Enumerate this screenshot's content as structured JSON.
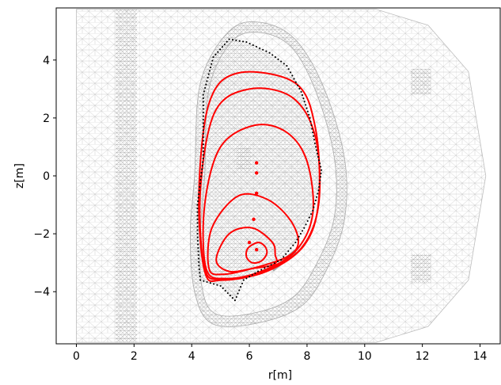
{
  "chart_data": {
    "type": "line",
    "title": "",
    "xlabel": "r[m]",
    "ylabel": "z[m]",
    "xlim": [
      -0.7,
      14.7
    ],
    "ylim": [
      -5.8,
      5.8
    ],
    "xticks": [
      "0",
      "2",
      "4",
      "6",
      "8",
      "10",
      "12",
      "14"
    ],
    "yticks": [
      "4",
      "2",
      "0",
      "−2",
      "−4"
    ],
    "grid": false,
    "legend": "none",
    "colors": {
      "flux_surface": "#ff0000",
      "mesh": "#bcbcbc",
      "wall_points": "#000000"
    },
    "background": {
      "mesh_outer_boundary": [
        [
          0,
          5.75
        ],
        [
          10.4,
          5.75
        ],
        [
          12.2,
          5.2
        ],
        [
          13.6,
          3.6
        ],
        [
          14.2,
          0
        ],
        [
          13.6,
          -3.6
        ],
        [
          12.2,
          -5.2
        ],
        [
          10.4,
          -5.75
        ],
        [
          0,
          -5.75
        ]
      ],
      "dense_mesh_regions": [
        {
          "r": [
            1.35,
            2.1
          ],
          "z": [
            -5.75,
            5.75
          ]
        },
        {
          "r": [
            11.6,
            12.3
          ],
          "z": [
            2.8,
            3.7
          ]
        },
        {
          "r": [
            11.6,
            12.3
          ],
          "z": [
            -3.7,
            -2.7
          ]
        },
        {
          "r": [
            5.55,
            6.05
          ],
          "z": [
            0.2,
            1.0
          ]
        }
      ],
      "vacuum_vessel_outer": [
        [
          4.1,
          0
        ],
        [
          4.3,
          3.2
        ],
        [
          5.3,
          5.0
        ],
        [
          6.4,
          5.3
        ],
        [
          7.6,
          4.7
        ],
        [
          8.6,
          3.0
        ],
        [
          9.3,
          0.6
        ],
        [
          9.3,
          -1.5
        ],
        [
          8.7,
          -3.2
        ],
        [
          7.8,
          -4.5
        ],
        [
          6.2,
          -5.1
        ],
        [
          4.7,
          -5.1
        ],
        [
          4.1,
          -4.0
        ],
        [
          3.95,
          -2.0
        ],
        [
          4.1,
          0
        ]
      ],
      "vacuum_vessel_inner": [
        [
          4.45,
          0
        ],
        [
          4.6,
          3.0
        ],
        [
          5.4,
          4.65
        ],
        [
          6.4,
          4.95
        ],
        [
          7.5,
          4.4
        ],
        [
          8.35,
          2.8
        ],
        [
          8.95,
          0.6
        ],
        [
          8.95,
          -1.4
        ],
        [
          8.35,
          -3.0
        ],
        [
          7.5,
          -4.2
        ],
        [
          6.1,
          -4.75
        ],
        [
          4.8,
          -4.75
        ],
        [
          4.35,
          -3.8
        ],
        [
          4.3,
          -2.0
        ],
        [
          4.45,
          0
        ]
      ]
    },
    "wall_points": [
      [
        4.4,
        0.6
      ],
      [
        4.4,
        2.8
      ],
      [
        4.75,
        4.1
      ],
      [
        5.3,
        4.72
      ],
      [
        5.9,
        4.62
      ],
      [
        6.7,
        4.25
      ],
      [
        7.3,
        3.8
      ],
      [
        7.8,
        2.9
      ],
      [
        8.1,
        2.0
      ],
      [
        8.3,
        1.0
      ],
      [
        8.5,
        0.2
      ],
      [
        8.4,
        -0.5
      ],
      [
        8.2,
        -1.2
      ],
      [
        7.9,
        -1.8
      ],
      [
        7.6,
        -2.3
      ],
      [
        7.1,
        -2.9
      ],
      [
        6.3,
        -3.3
      ],
      [
        5.8,
        -3.6
      ],
      [
        5.5,
        -4.3
      ],
      [
        5.0,
        -3.8
      ],
      [
        4.3,
        -3.6
      ],
      [
        4.25,
        -3.1
      ],
      [
        4.2,
        -2.0
      ],
      [
        4.2,
        -1.0
      ]
    ],
    "divertor_target": [
      [
        6.8,
        -3.25
      ],
      [
        7.6,
        -2.6
      ]
    ],
    "series": [
      {
        "r": [
          6.9,
          6.8,
          6.1,
          5.3,
          4.85,
          5.3,
          6.1,
          6.75,
          6.95,
          6.9
        ],
        "z": [
          -2.75,
          -2.3,
          -1.8,
          -2.0,
          -2.9,
          -3.3,
          -3.2,
          -3.1,
          -2.95,
          -2.75
        ]
      },
      {
        "r": [
          6.3,
          6.55,
          6.6,
          6.4,
          6.1,
          5.9,
          5.95,
          6.3
        ],
        "z": [
          -2.3,
          -2.45,
          -2.7,
          -2.95,
          -3.0,
          -2.8,
          -2.5,
          -2.3
        ]
      },
      {
        "r": [
          7.7,
          7.4,
          6.6,
          5.6,
          4.7,
          4.6,
          5.1,
          6.1,
          7.3,
          7.7
        ],
        "z": [
          -2.3,
          -1.5,
          -0.8,
          -0.7,
          -1.8,
          -3.2,
          -3.4,
          -3.2,
          -2.8,
          -2.3
        ]
      },
      {
        "r": [
          8.2,
          8.0,
          7.3,
          6.2,
          5.0,
          4.45,
          4.5,
          5.2,
          6.4,
          7.6,
          8.2
        ],
        "z": [
          -1.3,
          0.5,
          1.5,
          1.75,
          1.0,
          -1.0,
          -3.2,
          -3.55,
          -3.3,
          -2.6,
          -1.3
        ]
      },
      {
        "r": [
          8.4,
          8.3,
          7.5,
          6.0,
          4.8,
          4.3,
          4.45,
          5.1,
          6.5,
          7.8,
          8.4
        ],
        "z": [
          -1.0,
          1.3,
          2.7,
          3.0,
          2.2,
          -0.5,
          -3.2,
          -3.55,
          -3.3,
          -2.5,
          -1.0
        ]
      },
      {
        "r": [
          8.4,
          8.3,
          7.6,
          5.6,
          4.6,
          4.25,
          4.45,
          5.05,
          6.6,
          7.9,
          8.4
        ],
        "z": [
          -0.9,
          1.6,
          3.2,
          3.55,
          2.5,
          -0.6,
          -3.3,
          -3.6,
          -3.3,
          -2.4,
          -0.9
        ]
      }
    ],
    "axis_points": [
      [
        6.25,
        -2.55
      ],
      [
        6.0,
        -2.3
      ],
      [
        6.15,
        -1.5
      ],
      [
        6.25,
        -0.6
      ],
      [
        6.25,
        0.1
      ],
      [
        6.25,
        0.45
      ]
    ]
  }
}
